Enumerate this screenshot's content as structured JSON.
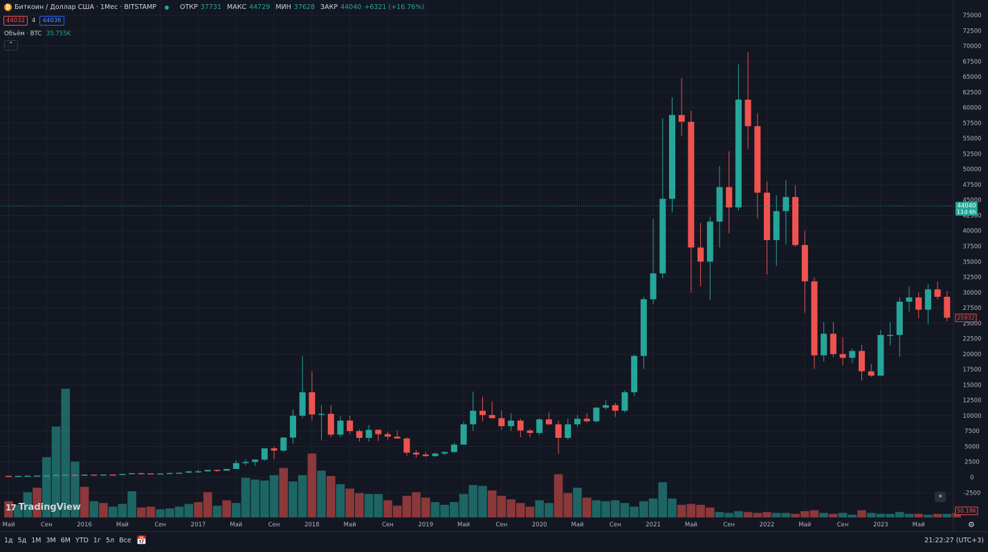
{
  "header": {
    "coin_icon": "bitcoin-icon",
    "symbol": "Биткоин / Доллар США · 1Мес · BITSTAMP",
    "open_label": "ОТКР",
    "open": "37731",
    "high_label": "МАКС",
    "high": "44729",
    "low_label": "МИН",
    "low": "37628",
    "close_label": "ЗАКР",
    "close": "44040",
    "change": "+6321 (+16.76%)",
    "bid": "44032",
    "spread": "4",
    "ask": "44036",
    "volume_label": "Объём · BTC",
    "volume_value": "35.755K"
  },
  "logo": "TradingView",
  "toolbar": {
    "ranges": [
      "1д",
      "5д",
      "1М",
      "3М",
      "6М",
      "YTD",
      "1г",
      "5л",
      "Все"
    ],
    "clock": "21:22:27 (UTC+3)"
  },
  "colors": {
    "up": "#26a69a",
    "down": "#ef5350",
    "bg": "#131722",
    "grid": "#2a2e39",
    "text": "#d1d4dc"
  },
  "chart_data": {
    "type": "candlestick",
    "y_ticks": [
      75000,
      72500,
      70000,
      67500,
      65000,
      62500,
      60000,
      57500,
      55000,
      52500,
      50000,
      47500,
      45000,
      42500,
      40000,
      37500,
      35000,
      32500,
      30000,
      27500,
      25000,
      22500,
      20000,
      17500,
      15000,
      12500,
      10000,
      7500,
      5000,
      2500,
      0,
      -2500
    ],
    "ylim": [
      -2500,
      75000
    ],
    "x_ticks": [
      {
        "label": "Май",
        "i": 0
      },
      {
        "label": "Сен",
        "i": 4
      },
      {
        "label": "2016",
        "i": 8
      },
      {
        "label": "Май",
        "i": 12
      },
      {
        "label": "Сен",
        "i": 16
      },
      {
        "label": "2017",
        "i": 20
      },
      {
        "label": "Май",
        "i": 24
      },
      {
        "label": "Сен",
        "i": 28
      },
      {
        "label": "2018",
        "i": 32
      },
      {
        "label": "Май",
        "i": 36
      },
      {
        "label": "Сен",
        "i": 40
      },
      {
        "label": "2019",
        "i": 44
      },
      {
        "label": "Май",
        "i": 48
      },
      {
        "label": "Сен",
        "i": 52
      },
      {
        "label": "2020",
        "i": 56
      },
      {
        "label": "Май",
        "i": 60
      },
      {
        "label": "Сен",
        "i": 64
      },
      {
        "label": "2021",
        "i": 68
      },
      {
        "label": "Май",
        "i": 72
      },
      {
        "label": "Сен",
        "i": 76
      },
      {
        "label": "2022",
        "i": 80
      },
      {
        "label": "Май",
        "i": 84
      },
      {
        "label": "Сен",
        "i": 88
      },
      {
        "label": "2023",
        "i": 92
      },
      {
        "label": "Май",
        "i": 96
      }
    ],
    "candles": [
      [
        236,
        240,
        210,
        229
      ],
      [
        229,
        235,
        200,
        230
      ],
      [
        230,
        260,
        220,
        255
      ],
      [
        255,
        290,
        240,
        275
      ],
      [
        275,
        330,
        260,
        315
      ],
      [
        315,
        500,
        310,
        380
      ],
      [
        380,
        460,
        300,
        430
      ],
      [
        430,
        440,
        350,
        380
      ],
      [
        380,
        440,
        360,
        432
      ],
      [
        432,
        440,
        400,
        416
      ],
      [
        416,
        460,
        390,
        450
      ],
      [
        450,
        470,
        420,
        445
      ],
      [
        445,
        550,
        440,
        530
      ],
      [
        530,
        680,
        520,
        670
      ],
      [
        670,
        780,
        610,
        625
      ],
      [
        625,
        630,
        560,
        575
      ],
      [
        575,
        640,
        560,
        610
      ],
      [
        610,
        760,
        600,
        700
      ],
      [
        700,
        750,
        690,
        745
      ],
      [
        745,
        1000,
        740,
        960
      ],
      [
        960,
        1150,
        750,
        965
      ],
      [
        965,
        1230,
        920,
        1190
      ],
      [
        1190,
        1290,
        890,
        1080
      ],
      [
        1080,
        1350,
        1060,
        1350
      ],
      [
        1350,
        2760,
        1350,
        2300
      ],
      [
        2300,
        2900,
        2000,
        2500
      ],
      [
        2500,
        2900,
        1830,
        2870
      ],
      [
        2870,
        4480,
        2700,
        4700
      ],
      [
        4700,
        5000,
        2950,
        4340
      ],
      [
        4340,
        6500,
        4100,
        6450
      ],
      [
        6450,
        11000,
        5500,
        10000
      ],
      [
        10000,
        19700,
        9600,
        13800
      ],
      [
        13800,
        17200,
        9200,
        10200
      ],
      [
        10200,
        11700,
        6000,
        10300
      ],
      [
        10300,
        11700,
        6500,
        6920
      ],
      [
        6920,
        9900,
        6500,
        9200
      ],
      [
        9200,
        10000,
        7000,
        7500
      ],
      [
        7500,
        7800,
        5800,
        6400
      ],
      [
        6400,
        8500,
        5800,
        7700
      ],
      [
        7700,
        7800,
        5900,
        7000
      ],
      [
        7000,
        7400,
        6100,
        6600
      ],
      [
        6600,
        7600,
        6300,
        6300
      ],
      [
        6300,
        6500,
        3500,
        4000
      ],
      [
        4000,
        4400,
        3200,
        3700
      ],
      [
        3700,
        4100,
        3300,
        3450
      ],
      [
        3450,
        4000,
        3300,
        3850
      ],
      [
        3850,
        4200,
        3600,
        4100
      ],
      [
        4100,
        5600,
        4000,
        5300
      ],
      [
        5300,
        9000,
        5300,
        8600
      ],
      [
        8600,
        13900,
        7500,
        10800
      ],
      [
        10800,
        13100,
        9100,
        10100
      ],
      [
        10100,
        12300,
        9500,
        9600
      ],
      [
        9600,
        10900,
        7700,
        8300
      ],
      [
        8300,
        10400,
        7500,
        9200
      ],
      [
        9200,
        9500,
        6500,
        7600
      ],
      [
        7600,
        7800,
        6500,
        7200
      ],
      [
        7200,
        9600,
        6900,
        9400
      ],
      [
        9400,
        10500,
        8500,
        8600
      ],
      [
        8600,
        9200,
        3800,
        6400
      ],
      [
        6400,
        9500,
        6100,
        8600
      ],
      [
        8600,
        10100,
        8200,
        9500
      ],
      [
        9500,
        10400,
        8900,
        9100
      ],
      [
        9100,
        11400,
        8900,
        11300
      ],
      [
        11300,
        12500,
        11000,
        11700
      ],
      [
        11700,
        12100,
        9800,
        10800
      ],
      [
        10800,
        14100,
        10500,
        13800
      ],
      [
        13800,
        19900,
        13200,
        19700
      ],
      [
        19700,
        29300,
        17600,
        28900
      ],
      [
        28900,
        41900,
        28100,
        33100
      ],
      [
        33100,
        58300,
        32300,
        45200
      ],
      [
        45200,
        61700,
        43000,
        58800
      ],
      [
        58800,
        64800,
        55400,
        57700
      ],
      [
        57700,
        59500,
        30000,
        37300
      ],
      [
        37300,
        41300,
        31000,
        35000
      ],
      [
        35000,
        42300,
        28800,
        41500
      ],
      [
        41500,
        50500,
        37300,
        47100
      ],
      [
        47100,
        52900,
        39600,
        43800
      ],
      [
        43800,
        67000,
        43300,
        61300
      ],
      [
        61300,
        69000,
        53300,
        57000
      ],
      [
        57000,
        59100,
        42000,
        46200
      ],
      [
        46200,
        48000,
        32900,
        38500
      ],
      [
        38500,
        45800,
        34300,
        43200
      ],
      [
        43200,
        48200,
        37800,
        45500
      ],
      [
        45500,
        47400,
        37400,
        37700
      ],
      [
        37700,
        40000,
        26700,
        31800
      ],
      [
        31800,
        32400,
        17600,
        19800
      ],
      [
        19800,
        25200,
        18800,
        23300
      ],
      [
        23300,
        25200,
        19500,
        20000
      ],
      [
        20000,
        22700,
        18200,
        19400
      ],
      [
        19400,
        20900,
        18500,
        20500
      ],
      [
        20500,
        21500,
        15700,
        17200
      ],
      [
        17200,
        18400,
        16300,
        16500
      ],
      [
        16500,
        23900,
        16500,
        23100
      ],
      [
        23100,
        25200,
        21400,
        23100
      ],
      [
        23100,
        29200,
        19600,
        28500
      ],
      [
        28500,
        31000,
        26900,
        29200
      ],
      [
        29200,
        30000,
        25800,
        27200
      ],
      [
        27200,
        31400,
        24800,
        30500
      ],
      [
        30500,
        31800,
        28900,
        29300
      ],
      [
        29300,
        30200,
        25300,
        25900
      ]
    ],
    "volumes": [
      [
        18,
        false
      ],
      [
        14,
        true
      ],
      [
        28,
        true
      ],
      [
        33,
        false
      ],
      [
        67,
        true
      ],
      [
        101,
        true
      ],
      [
        143,
        true
      ],
      [
        62,
        true
      ],
      [
        34,
        false
      ],
      [
        18,
        true
      ],
      [
        16,
        false
      ],
      [
        12,
        true
      ],
      [
        15,
        true
      ],
      [
        29,
        true
      ],
      [
        11,
        false
      ],
      [
        12,
        false
      ],
      [
        9,
        true
      ],
      [
        10,
        true
      ],
      [
        12,
        true
      ],
      [
        15,
        true
      ],
      [
        17,
        false
      ],
      [
        28,
        false
      ],
      [
        13,
        true
      ],
      [
        19,
        false
      ],
      [
        16,
        true
      ],
      [
        44,
        true
      ],
      [
        42,
        true
      ],
      [
        41,
        true
      ],
      [
        47,
        true
      ],
      [
        55,
        false
      ],
      [
        40,
        true
      ],
      [
        47,
        true
      ],
      [
        71,
        false
      ],
      [
        52,
        true
      ],
      [
        46,
        false
      ],
      [
        37,
        true
      ],
      [
        32,
        false
      ],
      [
        27,
        false
      ],
      [
        26,
        true
      ],
      [
        26,
        true
      ],
      [
        19,
        false
      ],
      [
        13,
        false
      ],
      [
        24,
        false
      ],
      [
        28,
        false
      ],
      [
        22,
        false
      ],
      [
        17,
        true
      ],
      [
        14,
        true
      ],
      [
        17,
        true
      ],
      [
        26,
        true
      ],
      [
        36,
        true
      ],
      [
        35,
        true
      ],
      [
        30,
        false
      ],
      [
        24,
        false
      ],
      [
        20,
        false
      ],
      [
        16,
        false
      ],
      [
        12,
        false
      ],
      [
        19,
        true
      ],
      [
        16,
        true
      ],
      [
        48,
        false
      ],
      [
        27,
        false
      ],
      [
        33,
        true
      ],
      [
        22,
        false
      ],
      [
        19,
        true
      ],
      [
        18,
        true
      ],
      [
        19,
        true
      ],
      [
        16,
        true
      ],
      [
        12,
        true
      ],
      [
        18,
        true
      ],
      [
        21,
        true
      ],
      [
        39,
        true
      ],
      [
        21,
        true
      ],
      [
        14,
        false
      ],
      [
        15,
        false
      ],
      [
        14,
        false
      ],
      [
        11,
        false
      ],
      [
        6,
        true
      ],
      [
        5,
        true
      ],
      [
        7,
        true
      ],
      [
        6,
        false
      ],
      [
        5,
        false
      ],
      [
        6,
        false
      ],
      [
        5,
        true
      ],
      [
        5,
        true
      ],
      [
        4,
        false
      ],
      [
        7,
        false
      ],
      [
        8,
        false
      ],
      [
        5,
        true
      ],
      [
        4,
        false
      ],
      [
        5,
        true
      ],
      [
        3,
        true
      ],
      [
        8,
        false
      ],
      [
        5,
        true
      ],
      [
        4,
        true
      ],
      [
        4,
        true
      ],
      [
        6,
        true
      ],
      [
        4,
        true
      ],
      [
        4,
        false
      ],
      [
        3,
        true
      ],
      [
        4,
        false
      ],
      [
        4,
        true
      ],
      [
        5,
        false
      ]
    ],
    "last_price_label": "44040",
    "last_price_sublabel": "11d 6h",
    "last_price_level": 44040,
    "prev_close_label": "25932",
    "prev_close_level": 25932,
    "volume_axis_label": "50.18K"
  }
}
